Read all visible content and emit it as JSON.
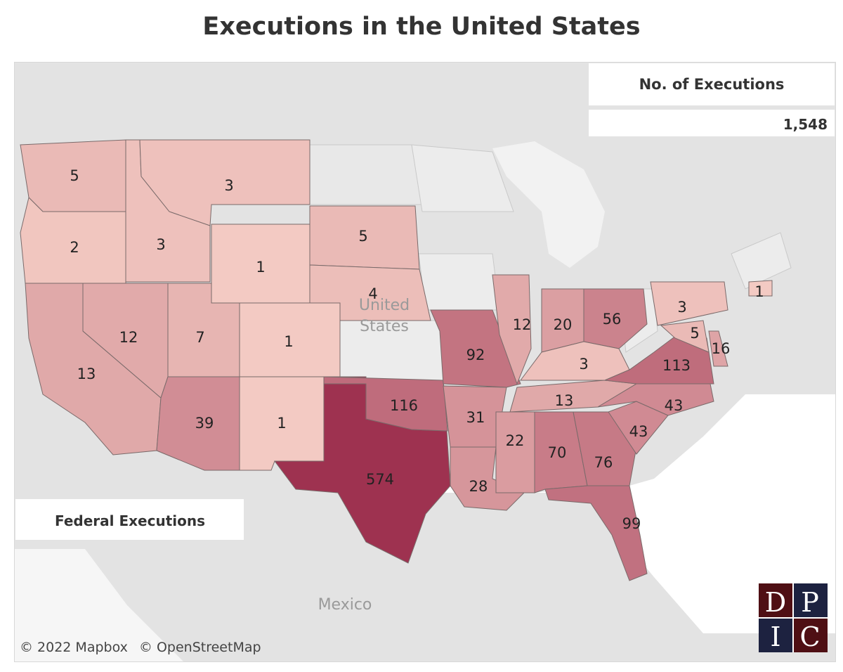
{
  "title": "Executions in the United States",
  "legend": {
    "label": "No. of Executions",
    "total": "1,548"
  },
  "federal_label": "Federal Executions",
  "place_labels": {
    "country": "United States",
    "neighbor": "Mexico"
  },
  "attribution": [
    "© 2022 Mapbox",
    "© OpenStreetMap"
  ],
  "logo": {
    "letters": [
      "D",
      "P",
      "I",
      "C"
    ],
    "colors": [
      "#4f0f14",
      "#1d2240"
    ]
  },
  "color_scale": {
    "low": "#f6cfc6",
    "high": "#9e3250"
  },
  "states": [
    {
      "code": "WA",
      "value": 5
    },
    {
      "code": "OR",
      "value": 2
    },
    {
      "code": "CA",
      "value": 13
    },
    {
      "code": "NV",
      "value": 12
    },
    {
      "code": "ID",
      "value": 3
    },
    {
      "code": "MT",
      "value": 3
    },
    {
      "code": "WY",
      "value": 1
    },
    {
      "code": "UT",
      "value": 7
    },
    {
      "code": "CO",
      "value": 1
    },
    {
      "code": "AZ",
      "value": 39
    },
    {
      "code": "NM",
      "value": 1
    },
    {
      "code": "SD",
      "value": 5
    },
    {
      "code": "NE",
      "value": 4
    },
    {
      "code": "TX",
      "value": 574
    },
    {
      "code": "OK",
      "value": 116
    },
    {
      "code": "MO",
      "value": 92
    },
    {
      "code": "AR",
      "value": 31
    },
    {
      "code": "LA",
      "value": 28
    },
    {
      "code": "IL",
      "value": 12
    },
    {
      "code": "IN",
      "value": 20
    },
    {
      "code": "OH",
      "value": 56
    },
    {
      "code": "KY",
      "value": 3
    },
    {
      "code": "TN",
      "value": 13
    },
    {
      "code": "MS",
      "value": 22
    },
    {
      "code": "AL",
      "value": 70
    },
    {
      "code": "GA",
      "value": 76
    },
    {
      "code": "FL",
      "value": 99
    },
    {
      "code": "SC",
      "value": 43
    },
    {
      "code": "NC",
      "value": 43
    },
    {
      "code": "VA",
      "value": 113
    },
    {
      "code": "PA",
      "value": 3
    },
    {
      "code": "MD",
      "value": 5
    },
    {
      "code": "DE",
      "value": 16
    },
    {
      "code": "CT",
      "value": 1
    }
  ]
}
